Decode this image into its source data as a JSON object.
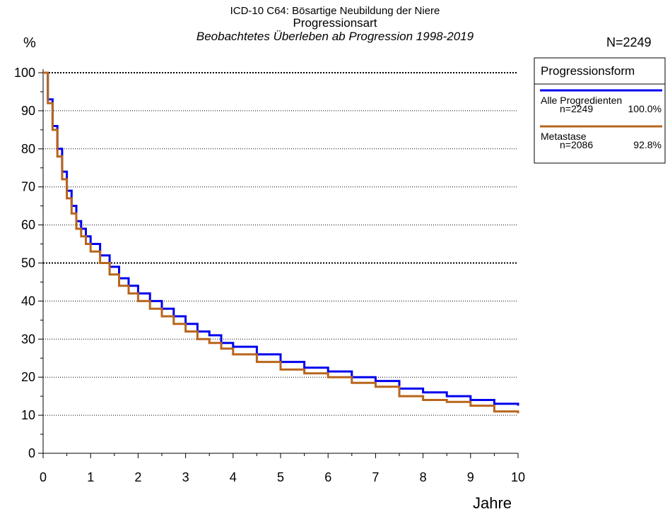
{
  "header": {
    "line1": "ICD-10 C64: Bösartige Neubildung der Niere",
    "line2": "Progressionsart",
    "line3": "Beobachtetes Überleben ab Progression 1998-2019",
    "n_total": "N=2249"
  },
  "chart_data": {
    "type": "line",
    "ylabel": "%",
    "xlabel": "Jahre",
    "xlim": [
      0,
      10
    ],
    "ylim": [
      0,
      100
    ],
    "xticks": [
      0,
      1,
      2,
      3,
      4,
      5,
      6,
      7,
      8,
      9,
      10
    ],
    "yticks": [
      0,
      10,
      20,
      30,
      40,
      50,
      60,
      70,
      80,
      90,
      100
    ],
    "grid": "horizontal-dotted",
    "legend_position": "right",
    "legend_title": "Progressionsform",
    "series": [
      {
        "name": "Alle Progredienten",
        "n": "n=2249",
        "pct": "100.0%",
        "color": "#0000ee",
        "x": [
          0,
          0.1,
          0.2,
          0.3,
          0.4,
          0.5,
          0.6,
          0.7,
          0.8,
          0.9,
          1.0,
          1.2,
          1.4,
          1.6,
          1.8,
          2.0,
          2.25,
          2.5,
          2.75,
          3.0,
          3.25,
          3.5,
          3.75,
          4.0,
          4.5,
          5.0,
          5.5,
          6.0,
          6.5,
          7.0,
          7.5,
          8.0,
          8.5,
          9.0,
          9.5,
          10.0
        ],
        "y": [
          100,
          93,
          86,
          80,
          74,
          69,
          65,
          61,
          59,
          57,
          55,
          52,
          49,
          46,
          44,
          42,
          40,
          38,
          36,
          34,
          32,
          31,
          29,
          28,
          26,
          24,
          22.5,
          21.5,
          20,
          19,
          17,
          16,
          15,
          14,
          13,
          12.5
        ]
      },
      {
        "name": "Metastase",
        "n": "n=2086",
        "pct": "92.8%",
        "color": "#b8651b",
        "x": [
          0,
          0.1,
          0.2,
          0.3,
          0.4,
          0.5,
          0.6,
          0.7,
          0.8,
          0.9,
          1.0,
          1.2,
          1.4,
          1.6,
          1.8,
          2.0,
          2.25,
          2.5,
          2.75,
          3.0,
          3.25,
          3.5,
          3.75,
          4.0,
          4.5,
          5.0,
          5.5,
          6.0,
          6.5,
          7.0,
          7.5,
          8.0,
          8.5,
          9.0,
          9.5,
          10.0
        ],
        "y": [
          100,
          92,
          85,
          78,
          72,
          67,
          63,
          59,
          57,
          55,
          53,
          50,
          47,
          44,
          42,
          40,
          38,
          36,
          34,
          32,
          30,
          29,
          27.5,
          26,
          24,
          22,
          21,
          20,
          18.5,
          17.5,
          15,
          14,
          13.5,
          12.5,
          11,
          10.5
        ]
      }
    ]
  }
}
